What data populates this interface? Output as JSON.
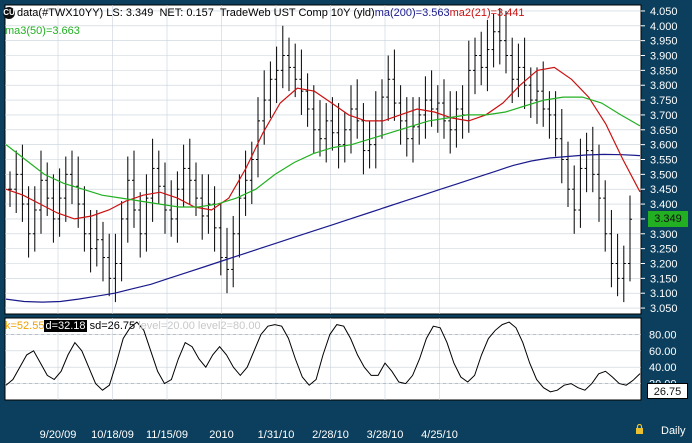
{
  "header": {
    "badge": "CU",
    "series_label": "data(#TWX10YY)",
    "ls_label": "LS: 3.349",
    "net_label": "NET: 0.157",
    "title": "TradeWeb UST Comp 10Y (yld)",
    "ma200_label": "ma(200)=3.563",
    "ma21_label": "ma2(21)=3.441",
    "ma50_label": "ma3(50)=3.663"
  },
  "stoch_header": {
    "k_label": "k=52.55",
    "d_label": "d=32.18",
    "sd_label": "sd=26.75",
    "level1_label": "level=20.00",
    "level2_label": "level2=80.00"
  },
  "last_price_tag": "3.349",
  "last_osc_tag": "26.75",
  "period_label": "Daily",
  "colors": {
    "plot_bg": "#ffffff",
    "frame_bg": "#0b3f5d",
    "bars": "#000000",
    "ma200": "#1a1a8c",
    "ma21": "#cc1111",
    "ma50": "#22b022",
    "stoch_d": "#000000",
    "label_text": "#ffffff",
    "k_text": "#f0a000",
    "level_text": "#c8c8c8",
    "last_price_bg": "#22b022"
  },
  "chart_data": [
    {
      "type": "line",
      "name": "price",
      "x_tick_labels": [
        "9/20/09",
        "10/18/09",
        "11/15/09",
        "2010",
        "1/31/10",
        "2/28/10",
        "3/28/10",
        "4/25/10"
      ],
      "y_ticks": [
        3.05,
        3.1,
        3.15,
        3.2,
        3.25,
        3.3,
        3.35,
        3.4,
        3.45,
        3.5,
        3.55,
        3.6,
        3.65,
        3.7,
        3.75,
        3.8,
        3.85,
        3.9,
        3.95,
        4.0,
        4.05
      ],
      "y_tick_labels": [
        "3.050",
        "3.100",
        "3.150",
        "3.200",
        "3.250",
        "3.300",
        "3.350",
        "3.400",
        "3.450",
        "3.500",
        "3.550",
        "3.600",
        "3.650",
        "3.700",
        "3.750",
        "3.800",
        "3.850",
        "3.900",
        "3.950",
        "4.000",
        "4.050"
      ],
      "ylim": [
        3.03,
        4.07
      ],
      "closes": [
        3.45,
        3.5,
        3.4,
        3.3,
        3.38,
        3.48,
        3.42,
        3.35,
        3.42,
        3.5,
        3.46,
        3.4,
        3.3,
        3.25,
        3.28,
        3.22,
        3.15,
        3.2,
        3.35,
        3.48,
        3.38,
        3.3,
        3.42,
        3.52,
        3.46,
        3.38,
        3.35,
        3.45,
        3.52,
        3.48,
        3.42,
        3.36,
        3.4,
        3.32,
        3.22,
        3.18,
        3.3,
        3.42,
        3.48,
        3.55,
        3.68,
        3.75,
        3.82,
        3.85,
        3.9,
        3.86,
        3.82,
        3.78,
        3.72,
        3.65,
        3.62,
        3.68,
        3.64,
        3.6,
        3.65,
        3.72,
        3.68,
        3.58,
        3.6,
        3.68,
        3.76,
        3.82,
        3.74,
        3.68,
        3.62,
        3.66,
        3.7,
        3.75,
        3.72,
        3.74,
        3.68,
        3.65,
        3.72,
        3.7,
        3.85,
        3.9,
        3.86,
        3.92,
        3.98,
        3.95,
        3.9,
        3.82,
        3.86,
        3.8,
        3.75,
        3.78,
        3.72,
        3.7,
        3.62,
        3.55,
        3.45,
        3.38,
        3.52,
        3.58,
        3.5,
        3.42,
        3.3,
        3.2,
        3.15,
        3.2,
        3.349
      ],
      "series": [
        {
          "name": "ma(200)",
          "values": [
            3.08,
            3.072,
            3.07,
            3.072,
            3.08,
            3.09,
            3.1,
            3.115,
            3.13,
            3.15,
            3.17,
            3.19,
            3.21,
            3.23,
            3.25,
            3.27,
            3.29,
            3.31,
            3.33,
            3.35,
            3.37,
            3.39,
            3.41,
            3.43,
            3.45,
            3.47,
            3.49,
            3.51,
            3.53,
            3.545,
            3.555,
            3.56,
            3.565,
            3.567,
            3.566,
            3.563
          ]
        },
        {
          "name": "ma2(21)",
          "values": [
            3.45,
            3.43,
            3.4,
            3.37,
            3.35,
            3.36,
            3.38,
            3.41,
            3.43,
            3.44,
            3.42,
            3.39,
            3.38,
            3.42,
            3.52,
            3.64,
            3.74,
            3.79,
            3.78,
            3.74,
            3.7,
            3.68,
            3.68,
            3.7,
            3.72,
            3.71,
            3.69,
            3.68,
            3.7,
            3.74,
            3.8,
            3.85,
            3.86,
            3.82,
            3.76,
            3.67,
            3.55,
            3.441
          ]
        },
        {
          "name": "ma3(50)",
          "values": [
            3.6,
            3.55,
            3.5,
            3.47,
            3.45,
            3.43,
            3.42,
            3.41,
            3.4,
            3.39,
            3.39,
            3.4,
            3.42,
            3.45,
            3.5,
            3.54,
            3.57,
            3.59,
            3.6,
            3.62,
            3.64,
            3.66,
            3.68,
            3.69,
            3.7,
            3.7,
            3.71,
            3.73,
            3.75,
            3.76,
            3.76,
            3.74,
            3.7,
            3.663
          ]
        }
      ]
    },
    {
      "type": "line",
      "name": "stochastic",
      "y_ticks": [
        20,
        40,
        60,
        80
      ],
      "y_tick_labels": [
        "20.00",
        "40.00",
        "60.00",
        "80.00"
      ],
      "ylim": [
        0,
        100
      ],
      "levels": [
        20,
        80
      ],
      "series": [
        {
          "name": "d",
          "values": [
            18,
            25,
            40,
            55,
            60,
            45,
            30,
            25,
            35,
            55,
            70,
            60,
            40,
            20,
            12,
            18,
            45,
            75,
            88,
            95,
            85,
            60,
            35,
            20,
            25,
            50,
            70,
            65,
            50,
            40,
            55,
            65,
            55,
            40,
            30,
            40,
            60,
            80,
            90,
            92,
            90,
            75,
            50,
            28,
            18,
            25,
            55,
            80,
            92,
            90,
            75,
            55,
            40,
            30,
            30,
            45,
            35,
            22,
            20,
            30,
            50,
            75,
            90,
            88,
            70,
            45,
            28,
            22,
            30,
            55,
            75,
            85,
            92,
            95,
            88,
            70,
            45,
            25,
            15,
            10,
            12,
            18,
            20,
            15,
            12,
            20,
            32,
            35,
            28,
            20,
            18,
            24,
            32.18
          ]
        }
      ]
    }
  ]
}
